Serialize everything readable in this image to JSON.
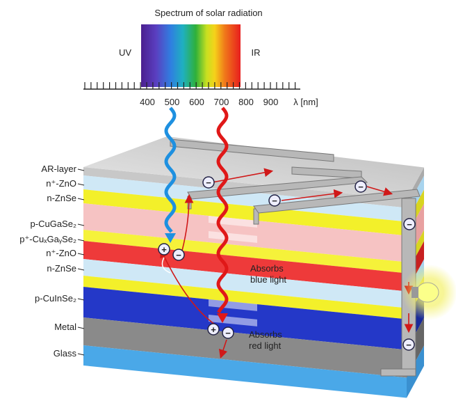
{
  "spectrum": {
    "title": "Spectrum of solar radiation",
    "uv": "UV",
    "ir": "IR",
    "tick_labels": [
      "400",
      "500",
      "600",
      "700",
      "800",
      "900"
    ],
    "unit": "λ [nm]"
  },
  "layers": [
    "AR-layer",
    "n⁺-ZnO",
    "n-ZnSe",
    "p-CuGaSe₂",
    "p⁺-CuₓGaᵧSe₂",
    "n⁺-ZnO",
    "n-ZnSe",
    "p-CuInSe₂",
    "Metal",
    "Glass"
  ],
  "annotations": {
    "blue": [
      "Absorbs",
      "blue light"
    ],
    "red": [
      "Absorbs",
      "red light"
    ]
  },
  "charges": {
    "plus": "+",
    "minus": "−"
  }
}
